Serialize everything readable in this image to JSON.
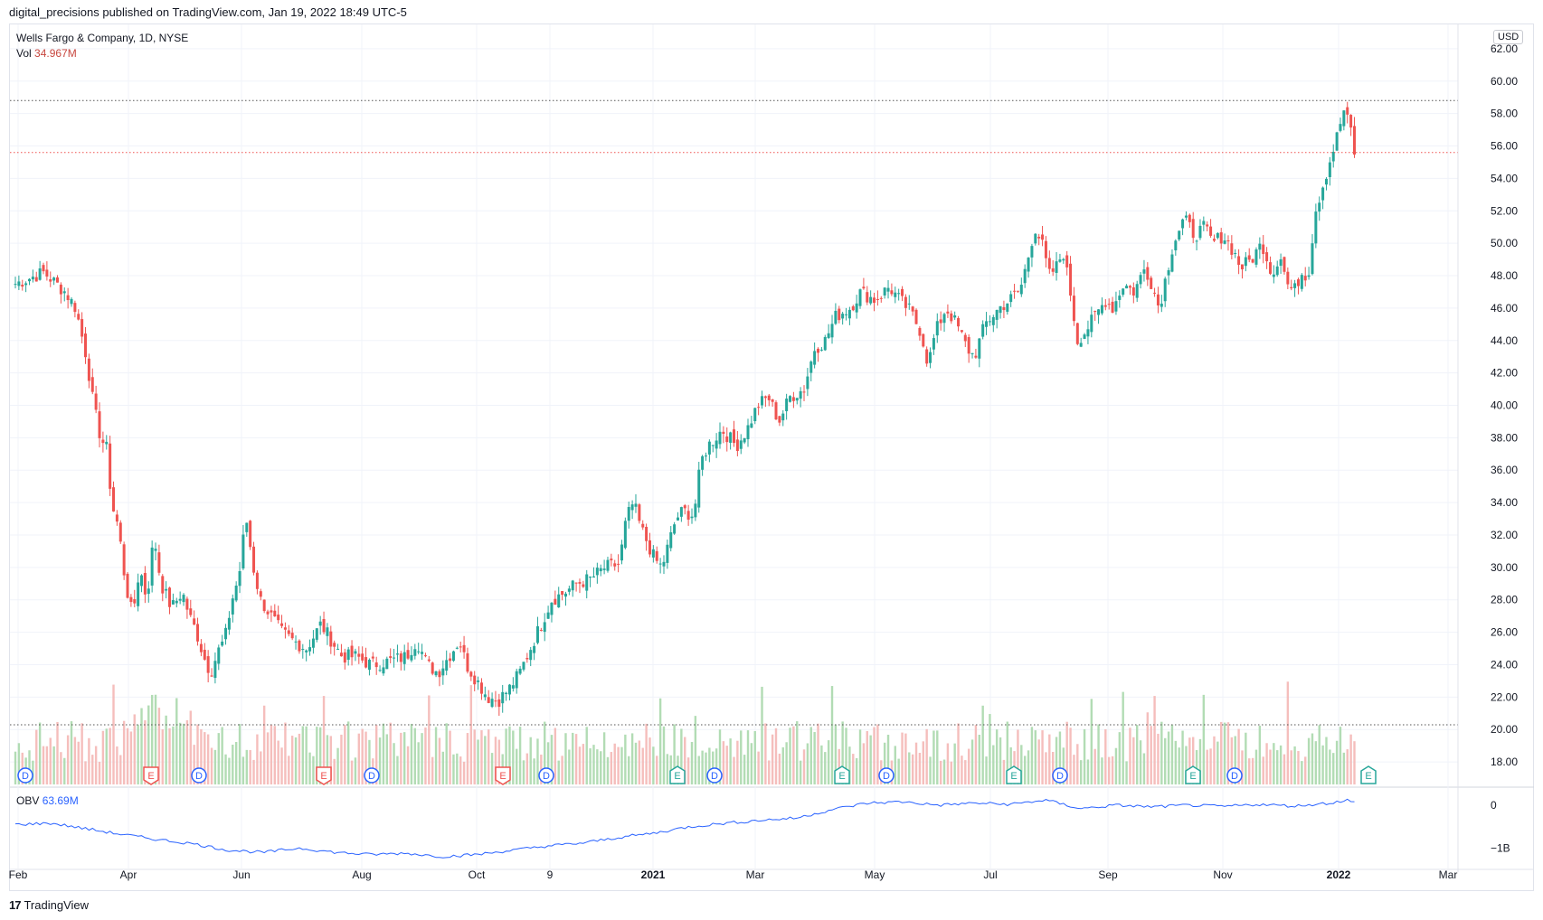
{
  "header": {
    "published_text": "digital_precisions published on TradingView.com, Jan 19, 2022 18:49 UTC-5"
  },
  "legend": {
    "symbol_text": "Wells Fargo & Company, 1D, NYSE",
    "vol_label": "Vol",
    "vol_value": "34.967M"
  },
  "obv_legend": {
    "label": "OBV",
    "value": "63.69M"
  },
  "footer": {
    "brand": "TradingView",
    "logo_glyph": "17"
  },
  "currency": "USD",
  "colors": {
    "up": "#26a69a",
    "down": "#ef5350",
    "obv": "#2962ff",
    "grid": "#f0f3fa",
    "dotted": "#555555"
  },
  "chart_data": {
    "type": "candlestick",
    "title": "Wells Fargo & Company, 1D, NYSE",
    "x_ticks": [
      "Feb",
      "Apr",
      "Jun",
      "Aug",
      "Oct",
      "9",
      "2021",
      "Mar",
      "May",
      "Jul",
      "Sep",
      "Nov",
      "2022",
      "Mar"
    ],
    "y_ticks": [
      "62.00",
      "60.00",
      "58.00",
      "56.00",
      "54.00",
      "52.00",
      "50.00",
      "48.00",
      "46.00",
      "44.00",
      "42.00",
      "40.00",
      "38.00",
      "36.00",
      "34.00",
      "32.00",
      "30.00",
      "28.00",
      "26.00",
      "24.00",
      "22.00",
      "20.00",
      "18.00"
    ],
    "ylim": [
      16.5,
      63.5
    ],
    "reference_lines": [
      58.8,
      55.6
    ],
    "price_path": [
      [
        0,
        47.5
      ],
      [
        8,
        48.2
      ],
      [
        14,
        47.0
      ],
      [
        17,
        46.0
      ],
      [
        20,
        43.0
      ],
      [
        22,
        40.0
      ],
      [
        24,
        38.0
      ],
      [
        26,
        37.2
      ],
      [
        27,
        34.0
      ],
      [
        29,
        32.5
      ],
      [
        31,
        29.0
      ],
      [
        33,
        27.0
      ],
      [
        35,
        30.0
      ],
      [
        37,
        28.0
      ],
      [
        39,
        32.0
      ],
      [
        41,
        29.0
      ],
      [
        44,
        27.5
      ],
      [
        47,
        28.5
      ],
      [
        49,
        27.0
      ],
      [
        51,
        26.0
      ],
      [
        53,
        24.5
      ],
      [
        55,
        23.5
      ],
      [
        57,
        24.8
      ],
      [
        59,
        25.6
      ],
      [
        61,
        28.0
      ],
      [
        63,
        29.5
      ],
      [
        64,
        31.5
      ],
      [
        65,
        33.0
      ],
      [
        67,
        30.0
      ],
      [
        69,
        28.0
      ],
      [
        72,
        27.0
      ],
      [
        75,
        26.0
      ],
      [
        78,
        25.5
      ],
      [
        82,
        25.0
      ],
      [
        86,
        26.5
      ],
      [
        89,
        25.5
      ],
      [
        92,
        24.5
      ],
      [
        96,
        24.5
      ],
      [
        100,
        24.0
      ],
      [
        105,
        24.2
      ],
      [
        110,
        24.5
      ],
      [
        113,
        25.5
      ],
      [
        116,
        24.0
      ],
      [
        119,
        23.5
      ],
      [
        122,
        24.5
      ],
      [
        125,
        25.5
      ],
      [
        127,
        24.0
      ],
      [
        130,
        23.0
      ],
      [
        133,
        22.0
      ],
      [
        136,
        21.8
      ],
      [
        139,
        22.5
      ],
      [
        142,
        23.5
      ],
      [
        144,
        24.5
      ],
      [
        147,
        26.0
      ],
      [
        149,
        27.0
      ],
      [
        151,
        28.0
      ],
      [
        155,
        28.5
      ],
      [
        158,
        29.0
      ],
      [
        162,
        29.3
      ],
      [
        166,
        30.0
      ],
      [
        170,
        30.2
      ],
      [
        172,
        33.0
      ],
      [
        174,
        34.0
      ],
      [
        176,
        32.5
      ],
      [
        178,
        31.5
      ],
      [
        180,
        30.5
      ],
      [
        182,
        30.0
      ],
      [
        184,
        31.5
      ],
      [
        186,
        33.0
      ],
      [
        188,
        33.5
      ],
      [
        191,
        33.2
      ],
      [
        193,
        36.5
      ],
      [
        195,
        37.5
      ],
      [
        199,
        38.5
      ],
      [
        203,
        37.5
      ],
      [
        206,
        38.5
      ],
      [
        209,
        40.0
      ],
      [
        212,
        40.5
      ],
      [
        215,
        39.0
      ],
      [
        218,
        40.5
      ],
      [
        222,
        41.0
      ],
      [
        225,
        43.5
      ],
      [
        228,
        44.0
      ],
      [
        231,
        45.5
      ],
      [
        235,
        46.0
      ],
      [
        238,
        47.0
      ],
      [
        242,
        46.5
      ],
      [
        246,
        47.3
      ],
      [
        249,
        46.5
      ],
      [
        252,
        45.8
      ],
      [
        255,
        44.5
      ],
      [
        257,
        42.5
      ],
      [
        259,
        44.5
      ],
      [
        262,
        46.0
      ],
      [
        265,
        45.0
      ],
      [
        268,
        43.5
      ],
      [
        270,
        43.0
      ],
      [
        273,
        45.0
      ],
      [
        277,
        46.0
      ],
      [
        280,
        46.5
      ],
      [
        283,
        47.2
      ],
      [
        285,
        49.0
      ],
      [
        287,
        51.0
      ],
      [
        289,
        50.0
      ],
      [
        291,
        48.0
      ],
      [
        293,
        48.5
      ],
      [
        295,
        49.5
      ],
      [
        297,
        47.0
      ],
      [
        299,
        44.0
      ],
      [
        301,
        44.5
      ],
      [
        304,
        45.5
      ],
      [
        307,
        46.5
      ],
      [
        309,
        46.0
      ],
      [
        312,
        47.5
      ],
      [
        315,
        47.0
      ],
      [
        318,
        48.5
      ],
      [
        320,
        47.5
      ],
      [
        322,
        46.0
      ],
      [
        324,
        48.0
      ],
      [
        326,
        50.0
      ],
      [
        329,
        51.5
      ],
      [
        332,
        50.5
      ],
      [
        335,
        51.0
      ],
      [
        337,
        50.0
      ],
      [
        340,
        50.5
      ],
      [
        343,
        49.5
      ],
      [
        345,
        48.5
      ],
      [
        348,
        49.0
      ],
      [
        351,
        50.0
      ],
      [
        354,
        48.0
      ],
      [
        356,
        49.5
      ],
      [
        358,
        47.5
      ],
      [
        360,
        47.0
      ],
      [
        362,
        48.2
      ],
      [
        364,
        48.0
      ],
      [
        365,
        50.0
      ],
      [
        366,
        52.0
      ],
      [
        368,
        53.5
      ],
      [
        370,
        55.0
      ],
      [
        372,
        56.5
      ],
      [
        374,
        58.2
      ],
      [
        376,
        57.0
      ],
      [
        377,
        55.6
      ]
    ],
    "obv_yticks": [
      "0",
      "−1B"
    ],
    "obv_path": [
      [
        0,
        -0.45
      ],
      [
        10,
        -0.42
      ],
      [
        20,
        -0.55
      ],
      [
        30,
        -0.68
      ],
      [
        40,
        -0.8
      ],
      [
        50,
        -0.9
      ],
      [
        60,
        -1.05
      ],
      [
        70,
        -1.1
      ],
      [
        80,
        -1.0
      ],
      [
        90,
        -1.1
      ],
      [
        100,
        -1.15
      ],
      [
        110,
        -1.12
      ],
      [
        120,
        -1.2
      ],
      [
        130,
        -1.15
      ],
      [
        140,
        -1.05
      ],
      [
        150,
        -0.95
      ],
      [
        160,
        -0.88
      ],
      [
        170,
        -0.75
      ],
      [
        180,
        -0.65
      ],
      [
        190,
        -0.5
      ],
      [
        200,
        -0.42
      ],
      [
        210,
        -0.35
      ],
      [
        220,
        -0.3
      ],
      [
        230,
        -0.1
      ],
      [
        240,
        0.05
      ],
      [
        250,
        0.08
      ],
      [
        260,
        0.0
      ],
      [
        270,
        0.05
      ],
      [
        280,
        0.02
      ],
      [
        290,
        0.12
      ],
      [
        300,
        -0.08
      ],
      [
        310,
        0.0
      ],
      [
        320,
        -0.04
      ],
      [
        330,
        0.0
      ],
      [
        340,
        -0.03
      ],
      [
        350,
        0.02
      ],
      [
        360,
        -0.02
      ],
      [
        370,
        0.05
      ],
      [
        375,
        0.12
      ],
      [
        377,
        0.06
      ]
    ],
    "events": [
      {
        "label": "D",
        "type": "dividend"
      },
      {
        "label": "E",
        "type": "earnings-down"
      },
      {
        "label": "D",
        "type": "dividend"
      },
      {
        "label": "E",
        "type": "earnings-down"
      },
      {
        "label": "D",
        "type": "dividend"
      },
      {
        "label": "E",
        "type": "earnings-down"
      },
      {
        "label": "D",
        "type": "dividend"
      },
      {
        "label": "E",
        "type": "earnings-up"
      },
      {
        "label": "D",
        "type": "dividend"
      },
      {
        "label": "E",
        "type": "earnings-up"
      },
      {
        "label": "D",
        "type": "dividend"
      },
      {
        "label": "E",
        "type": "earnings-up"
      },
      {
        "label": "D",
        "type": "dividend"
      },
      {
        "label": "E",
        "type": "earnings-up"
      },
      {
        "label": "D",
        "type": "dividend"
      },
      {
        "label": "E",
        "type": "earnings-up"
      }
    ]
  }
}
